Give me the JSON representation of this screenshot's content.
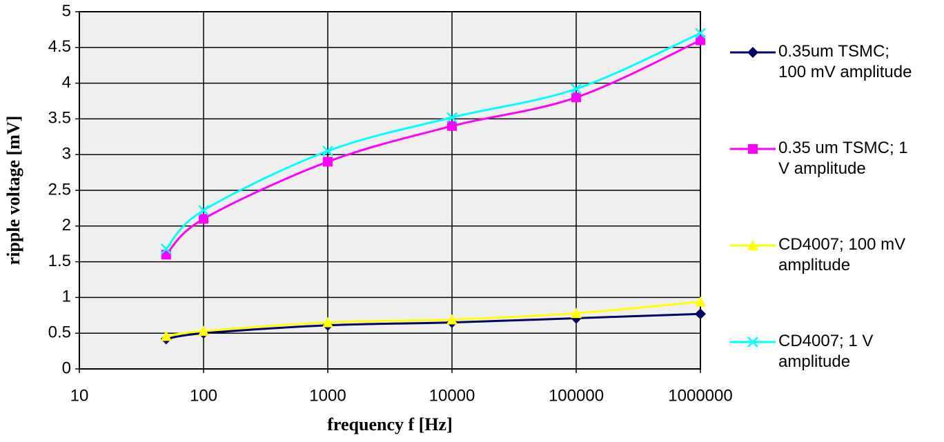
{
  "chart_data": {
    "type": "line",
    "ylabel": "ripple voltage [mV]",
    "xlabel": "frequency f [Hz]",
    "x": [
      50,
      100,
      1000,
      10000,
      100000,
      1000000
    ],
    "xlim": [
      10,
      1000000
    ],
    "xticks": [
      10,
      100,
      1000,
      10000,
      100000,
      1000000
    ],
    "xscale": "log",
    "ylim": [
      0,
      5
    ],
    "yticks": [
      0,
      0.5,
      1,
      1.5,
      2,
      2.5,
      3,
      3.5,
      4,
      4.5,
      5
    ],
    "grid": true,
    "smooth": true,
    "legend": "right",
    "series": [
      {
        "name": "0.35um TSMC; 100 mV amplitude",
        "color": "#000066",
        "marker": "diamond",
        "values": [
          0.42,
          0.5,
          0.61,
          0.65,
          0.71,
          0.77
        ]
      },
      {
        "name": "0.35 um TSMC; 1 V amplitude",
        "color": "#ff00ff",
        "marker": "square",
        "values": [
          1.6,
          2.1,
          2.9,
          3.4,
          3.8,
          4.6
        ]
      },
      {
        "name": "CD4007; 100 mV amplitude",
        "color": "#ffff00",
        "marker": "triangle",
        "values": [
          0.46,
          0.53,
          0.65,
          0.69,
          0.78,
          0.94
        ]
      },
      {
        "name": "CD4007; 1 V amplitude",
        "color": "#00ffff",
        "marker": "x",
        "values": [
          1.68,
          2.22,
          3.05,
          3.52,
          3.92,
          4.7
        ]
      }
    ]
  }
}
